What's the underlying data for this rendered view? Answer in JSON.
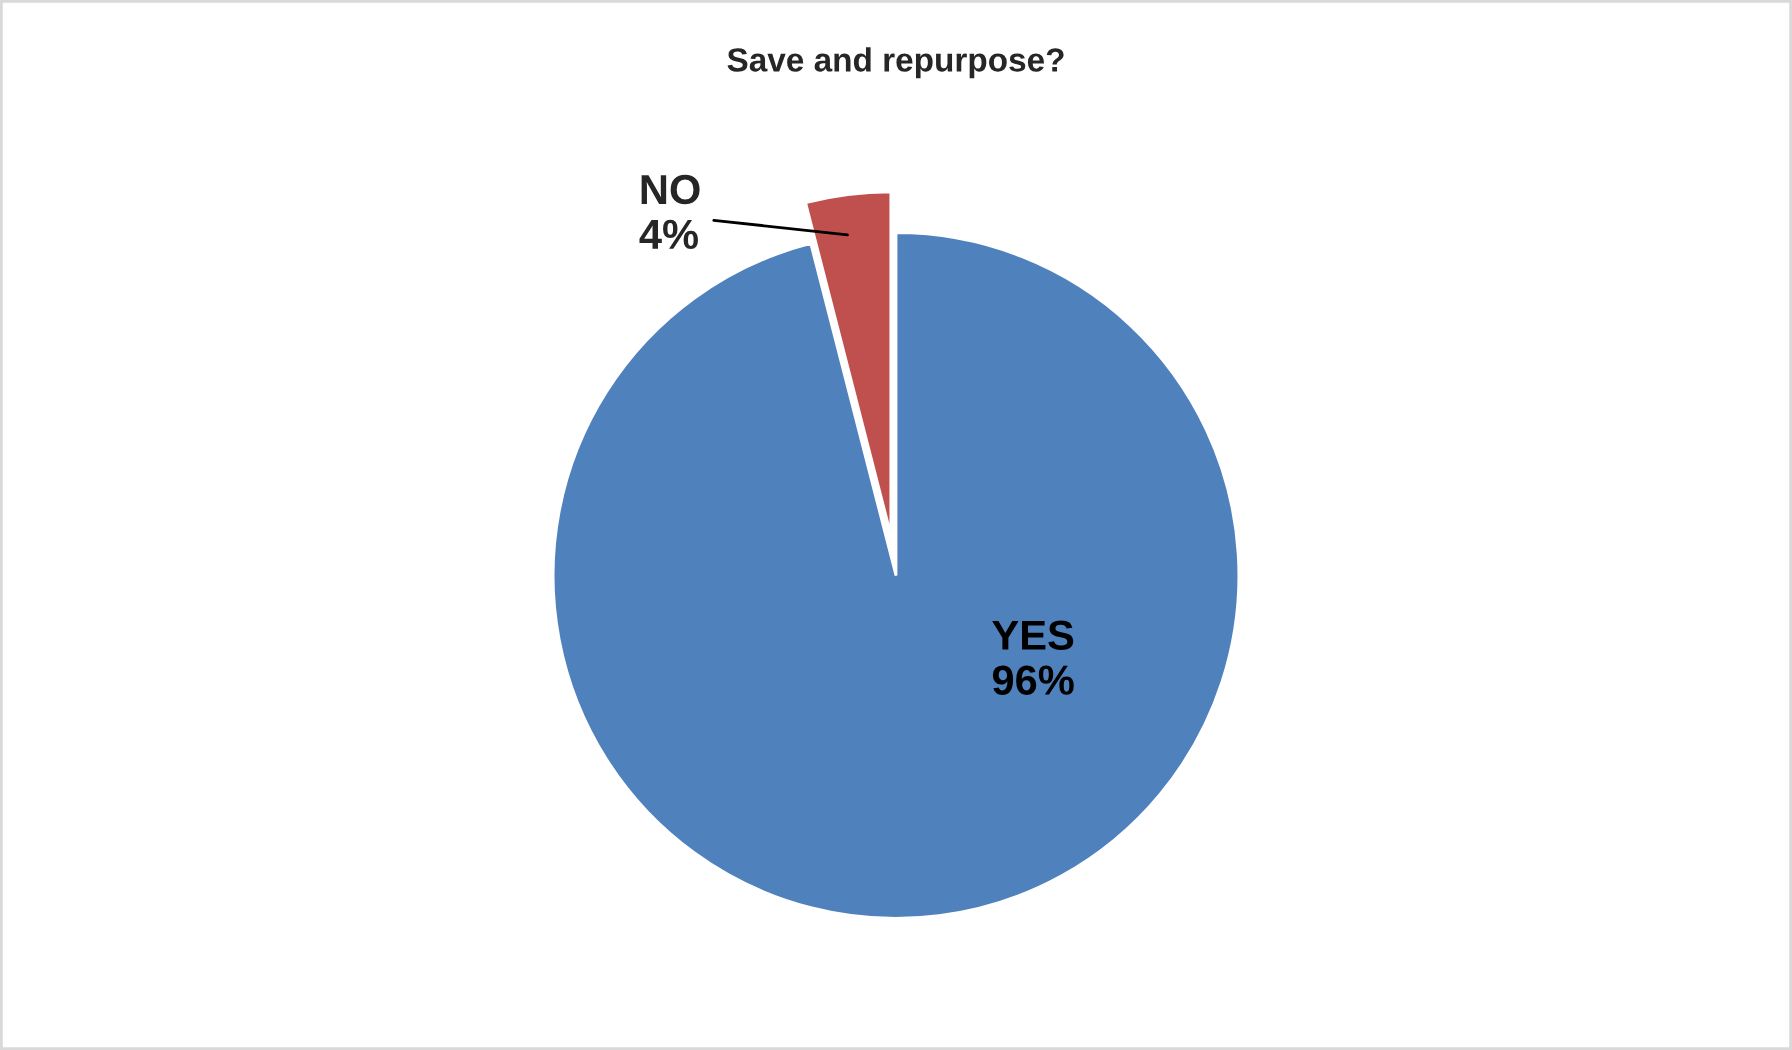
{
  "chart_data": {
    "type": "pie",
    "title": "Save and repurpose?",
    "categories": [
      "YES",
      "NO"
    ],
    "values": [
      96,
      4
    ],
    "colors": [
      "#4f81bd",
      "#c0504d"
    ],
    "value_labels": [
      "96%",
      "4%"
    ]
  }
}
